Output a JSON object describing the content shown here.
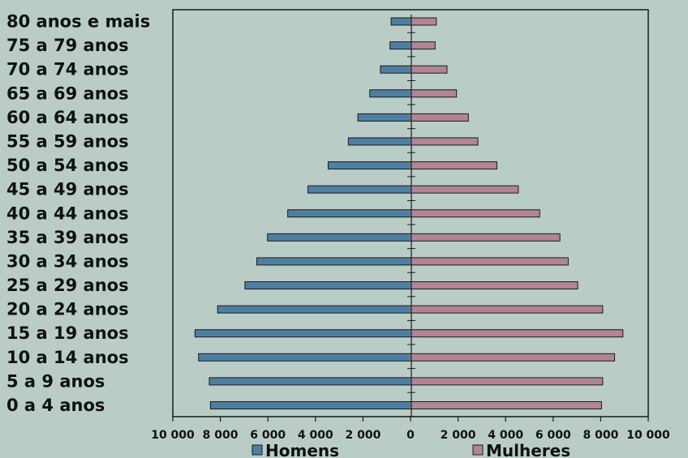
{
  "chart_data": {
    "type": "bar",
    "orientation": "horizontal",
    "categories": [
      "80 anos e mais",
      "75 a 79 anos",
      "70 a 74 anos",
      "65 a 69 anos",
      "60 a 64 anos",
      "55 a 59 anos",
      "50 a 54 anos",
      "45 a 49 anos",
      "40 a 44 anos",
      "35 a 39 anos",
      "30 a 34 anos",
      "25 a 29 anos",
      "20 a 24 anos",
      "15 a 19 anos",
      "10 a 14 anos",
      "5 a 9 anos",
      "0 a 4 anos"
    ],
    "series": [
      {
        "name": "Homens",
        "color": "#4f7fa0",
        "side": "left",
        "values": [
          850,
          900,
          1300,
          1750,
          2250,
          2650,
          3500,
          4350,
          5200,
          6050,
          6500,
          7000,
          8150,
          9100,
          8950,
          8500,
          8450
        ]
      },
      {
        "name": "Mulheres",
        "color": "#b08597",
        "side": "right",
        "values": [
          1050,
          1000,
          1500,
          1900,
          2400,
          2800,
          3600,
          4500,
          5400,
          6250,
          6600,
          7000,
          8050,
          8900,
          8550,
          8050,
          8000
        ]
      }
    ],
    "xlim": [
      -10000,
      10000
    ],
    "x_ticks": [
      "10 000",
      "8 000",
      "6 000",
      "4 000",
      "2 000",
      "0",
      "2 000",
      "4 000",
      "6 000",
      "8 000",
      "10 000"
    ],
    "legend_position": "bottom",
    "grid": false,
    "title": "",
    "xlabel": "",
    "ylabel": ""
  },
  "colors": {
    "background": "#b9cdc6",
    "bar_outline": "#1a1a1a",
    "axis": "#1a1a1a"
  }
}
